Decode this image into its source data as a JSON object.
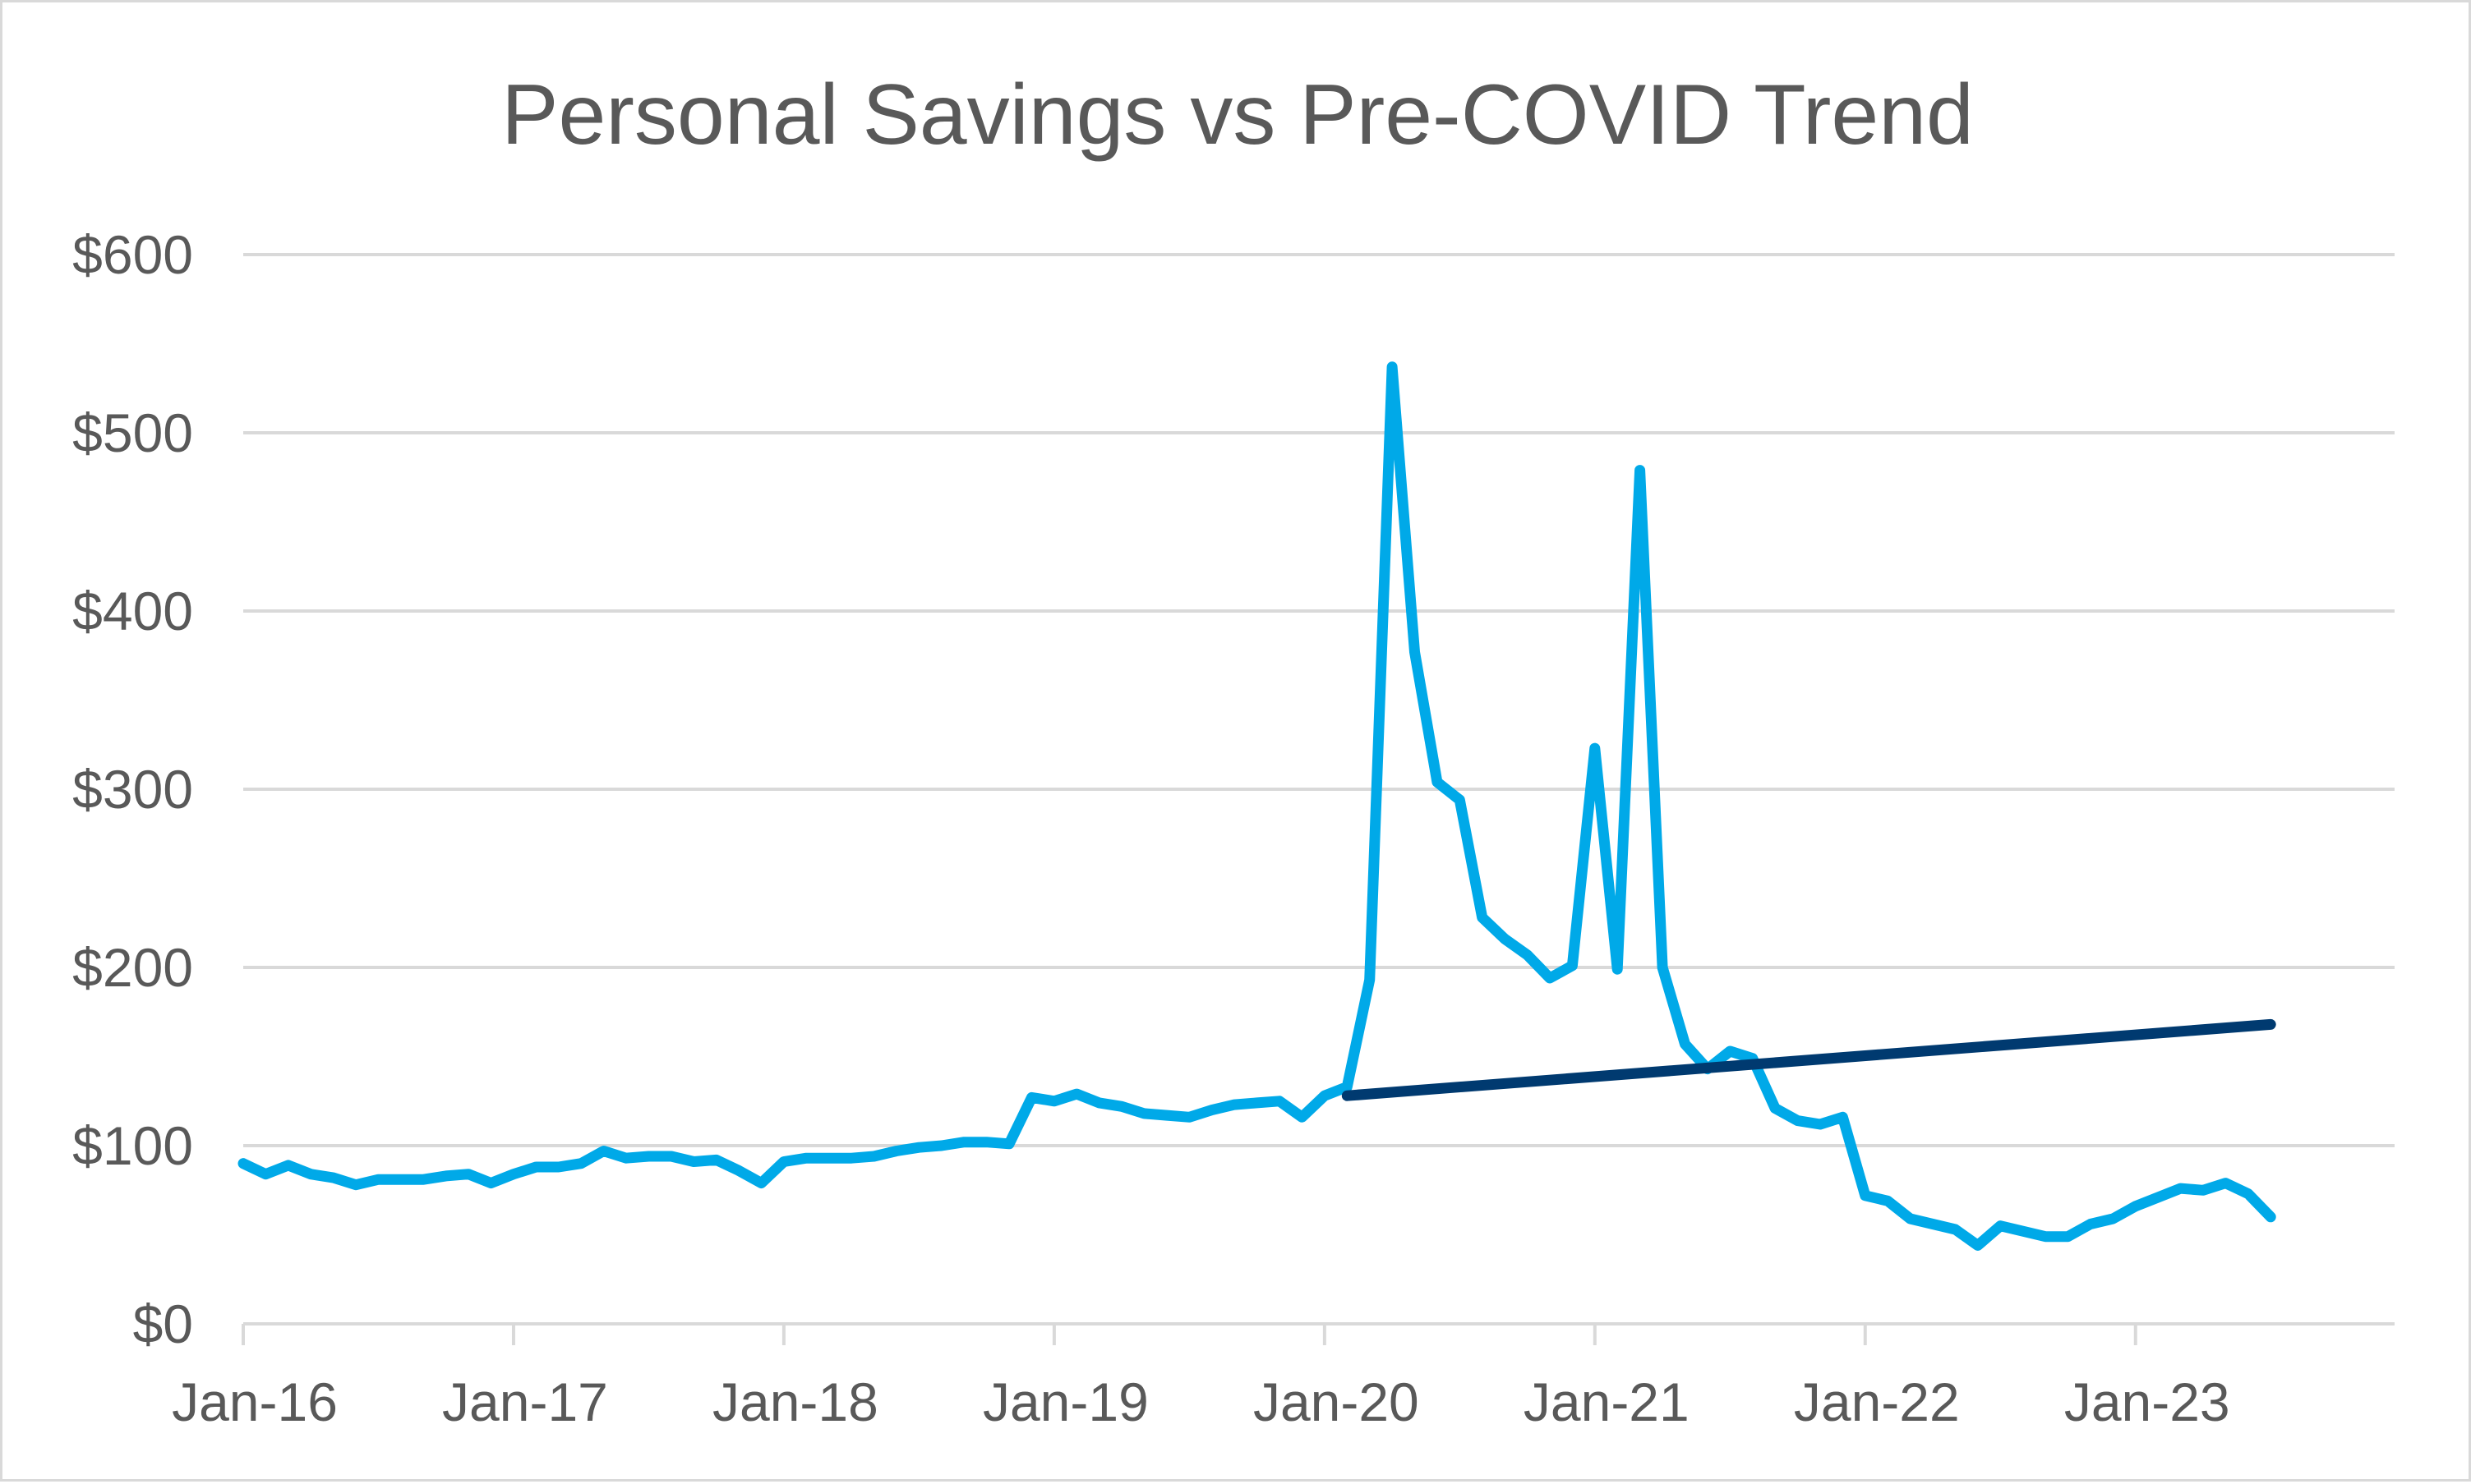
{
  "chart_data": {
    "type": "line",
    "title": "Personal Savings vs Pre-COVID Trend",
    "xlabel": "",
    "ylabel": "",
    "x_start": "2016-01",
    "x_tick_labels": [
      "Jan-16",
      "Jan-17",
      "Jan-18",
      "Jan-19",
      "Jan-20",
      "Jan-21",
      "Jan-22",
      "Jan-23"
    ],
    "y_tick_labels": [
      "$0",
      "$100",
      "$200",
      "$300",
      "$400",
      "$500",
      "$600"
    ],
    "ylim": [
      0,
      600
    ],
    "grid": true,
    "legend": "none",
    "series": [
      {
        "color": "#00A9E8",
        "x": [
          "2016-01",
          "2016-02",
          "2016-03",
          "2016-04",
          "2016-05",
          "2016-06",
          "2016-07",
          "2016-08",
          "2016-09",
          "2016-10",
          "2016-11",
          "2016-12",
          "2017-01",
          "2017-02",
          "2017-03",
          "2017-04",
          "2017-05",
          "2017-06",
          "2017-07",
          "2017-08",
          "2017-09",
          "2017-10",
          "2017-11",
          "2017-12",
          "2018-01",
          "2018-02",
          "2018-03",
          "2018-04",
          "2018-05",
          "2018-06",
          "2018-07",
          "2018-08",
          "2018-09",
          "2018-10",
          "2018-11",
          "2018-12",
          "2019-01",
          "2019-02",
          "2019-03",
          "2019-04",
          "2019-05",
          "2019-06",
          "2019-07",
          "2019-08",
          "2019-09",
          "2019-10",
          "2019-11",
          "2019-12",
          "2020-01",
          "2020-02",
          "2020-03",
          "2020-04",
          "2020-05",
          "2020-06",
          "2020-07",
          "2020-08",
          "2020-09",
          "2020-10",
          "2020-11",
          "2020-12",
          "2021-01",
          "2021-02",
          "2021-03",
          "2021-04",
          "2021-05",
          "2021-06",
          "2021-07",
          "2021-08",
          "2021-09",
          "2021-10",
          "2021-11",
          "2021-12",
          "2022-01",
          "2022-02",
          "2022-03",
          "2022-04",
          "2022-05",
          "2022-06",
          "2022-07",
          "2022-08",
          "2022-09",
          "2022-10",
          "2022-11",
          "2022-12",
          "2023-01",
          "2023-02",
          "2023-03",
          "2023-04",
          "2023-05",
          "2023-06",
          "2023-07"
        ],
        "values": [
          90,
          84,
          89,
          84,
          82,
          78,
          81,
          81,
          81,
          83,
          84,
          79,
          84,
          88,
          88,
          90,
          97,
          93,
          94,
          94,
          91,
          92,
          86,
          79,
          91,
          93,
          93,
          93,
          94,
          97,
          99,
          100,
          102,
          102,
          101,
          127,
          125,
          129,
          124,
          122,
          118,
          117,
          116,
          120,
          123,
          124,
          125,
          116,
          128,
          133,
          193,
          537,
          377,
          304,
          294,
          228,
          216,
          207,
          194,
          201,
          323,
          199,
          479,
          200,
          157,
          143,
          153,
          149,
          121,
          114,
          112,
          116,
          72,
          69,
          59,
          56,
          53,
          44,
          55,
          52,
          49,
          49,
          56,
          59,
          66,
          71,
          76,
          75,
          79,
          73,
          60
        ]
      },
      {
        "color": "#003A70",
        "x": [
          "2020-02",
          "2023-07"
        ],
        "values": [
          128,
          168
        ]
      }
    ]
  }
}
